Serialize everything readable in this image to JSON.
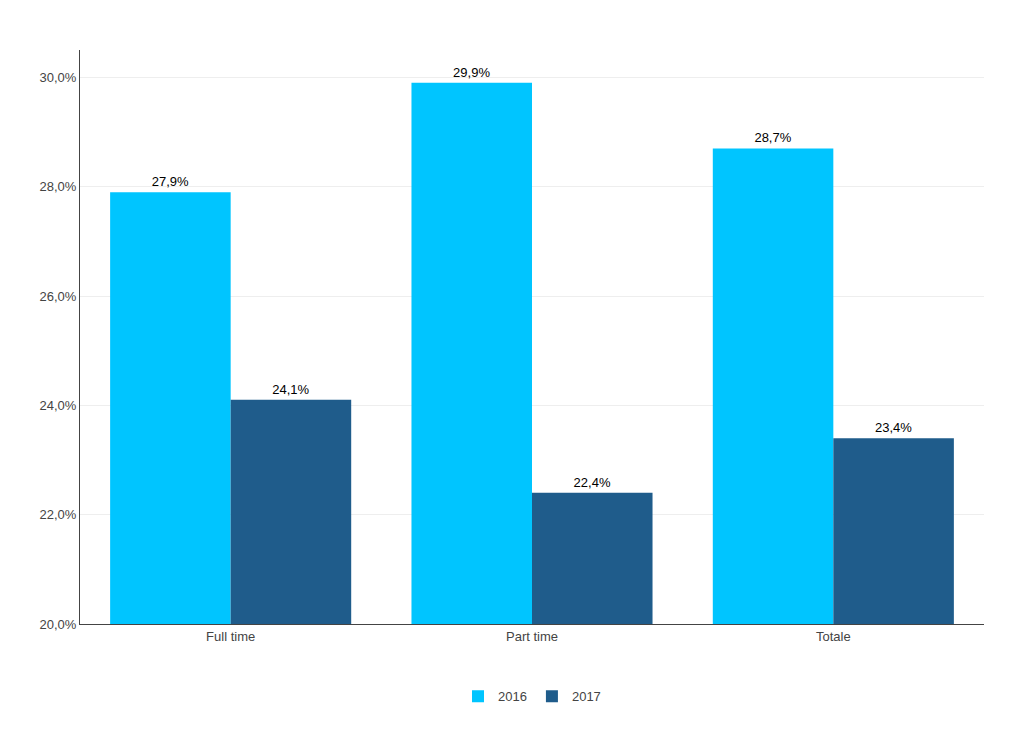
{
  "chart_data": {
    "type": "bar",
    "categories": [
      "Full time",
      "Part time",
      "Totale"
    ],
    "series": [
      {
        "name": "2016",
        "color": "#00C5FF",
        "values": [
          27.9,
          29.9,
          28.7
        ],
        "value_labels": [
          "27,9%",
          "29,9%",
          "28,7%"
        ]
      },
      {
        "name": "2017",
        "color": "#1F5C8B",
        "values": [
          24.1,
          22.4,
          23.4
        ],
        "value_labels": [
          "24,1%",
          "22,4%",
          "23,4%"
        ]
      }
    ],
    "ylim": [
      20.0,
      30.5
    ],
    "yticks": [
      {
        "value": 20.0,
        "label": "20,0%"
      },
      {
        "value": 22.0,
        "label": "22,0%"
      },
      {
        "value": 24.0,
        "label": "24,0%"
      },
      {
        "value": 26.0,
        "label": "26,0%"
      },
      {
        "value": 28.0,
        "label": "28,0%"
      },
      {
        "value": 30.0,
        "label": "30,0%"
      }
    ],
    "grid": true,
    "legend": "bottom",
    "data_labels": true
  }
}
